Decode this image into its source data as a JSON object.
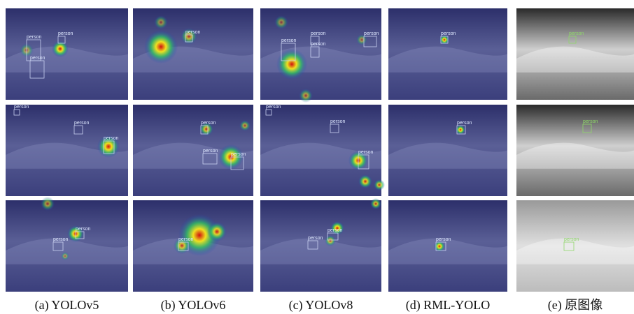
{
  "columns": [
    {
      "caption": "(a) YOLOv5",
      "cells": [
        [
          "person",
          "person",
          "person"
        ],
        [
          "person",
          "person",
          "person"
        ],
        [
          "person",
          "person"
        ]
      ]
    },
    {
      "caption": "(b) YOLOv6",
      "cells": [
        [
          "person"
        ],
        [
          "person",
          "person",
          "person"
        ],
        [
          "person"
        ]
      ]
    },
    {
      "caption": "(c) YOLOv8",
      "cells": [
        [
          "person",
          "person",
          "person",
          "person"
        ],
        [
          "person",
          "person",
          "person"
        ],
        [
          "person",
          "person"
        ]
      ]
    },
    {
      "caption": "(d) RML-YOLO",
      "cells": [
        [
          "person"
        ],
        [
          "person"
        ],
        [
          "person"
        ]
      ]
    },
    {
      "caption": "(e) 原图像",
      "cells": [
        [
          "person"
        ],
        [
          "person"
        ],
        [
          "person"
        ]
      ]
    }
  ]
}
